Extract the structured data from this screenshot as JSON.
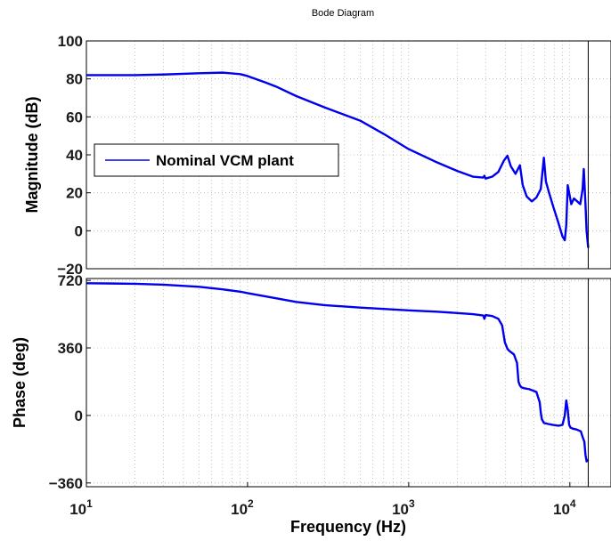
{
  "chart_data": {
    "type": "line",
    "title": "Bode Diagram",
    "xlabel": "Frequency  (Hz)",
    "x_scale": "log",
    "xlim": [
      10,
      18000
    ],
    "x_ticks": [
      {
        "value": 10,
        "base": "10",
        "exp": "1"
      },
      {
        "value": 100,
        "base": "10",
        "exp": "2"
      },
      {
        "value": 1000,
        "base": "10",
        "exp": "3"
      },
      {
        "value": 10000,
        "base": "10",
        "exp": "4"
      }
    ],
    "grid": true,
    "colors": {
      "line": "#0000ee",
      "grid": "#999999",
      "axis": "#000000"
    },
    "legend": {
      "label": "Nominal VCM plant",
      "placement": "middle-left"
    },
    "nyquist_marker_hz": 13000,
    "panels": [
      {
        "id": "magnitude",
        "ylabel": "Magnitude (dB)",
        "ylim": [
          -20,
          100
        ],
        "y_ticks": [
          -20,
          0,
          20,
          40,
          60,
          80,
          100
        ],
        "y_tick_labels": [
          "−20",
          "0",
          "20",
          "40",
          "60",
          "80",
          "100"
        ],
        "series": [
          {
            "name": "Nominal VCM plant",
            "x": [
              10,
              20,
              30,
              50,
              70,
              90,
              100,
              130,
              150,
              200,
              300,
              500,
              700,
              1000,
              1500,
              2000,
              2500,
              2900,
              2950,
              3000,
              3300,
              3600,
              3900,
              4100,
              4300,
              4600,
              4900,
              5100,
              5400,
              5800,
              6200,
              6600,
              6900,
              7100,
              7400,
              7900,
              8500,
              9000,
              9300,
              9500,
              9700,
              9900,
              10200,
              10600,
              11100,
              11600,
              12000,
              12200,
              12500,
              12700,
              13000
            ],
            "y": [
              82,
              82,
              82.3,
              83,
              83.3,
              82.5,
              81.5,
              78,
              76,
              71,
              65,
              58,
              51,
              43,
              36,
              31.5,
              28.5,
              28,
              29,
              27.5,
              28.5,
              31,
              37,
              39.5,
              34,
              30,
              34.5,
              24,
              18,
              15.5,
              17.5,
              22,
              38.5,
              26,
              20.5,
              12.5,
              4,
              -3,
              -5,
              3,
              24,
              20,
              14,
              17,
              15.5,
              14,
              22,
              32.5,
              14,
              0,
              -9
            ]
          }
        ]
      },
      {
        "id": "phase",
        "ylabel": "Phase (deg)",
        "ylim": [
          -380,
          730
        ],
        "y_ticks": [
          -360,
          0,
          360,
          720
        ],
        "y_tick_labels": [
          "−360",
          "0",
          "360",
          "720"
        ],
        "series": [
          {
            "name": "Nominal VCM plant",
            "x": [
              10,
              20,
              30,
              50,
              70,
              90,
              100,
              150,
              200,
              300,
              500,
              700,
              1000,
              1500,
              2000,
              2500,
              2900,
              2950,
              3000,
              3300,
              3600,
              3800,
              3950,
              4100,
              4200,
              4500,
              4700,
              4800,
              4900,
              5000,
              5200,
              5600,
              6200,
              6500,
              6600,
              6700,
              6800,
              6900,
              7300,
              7800,
              8500,
              9000,
              9300,
              9500,
              9700,
              9900,
              10100,
              10400,
              11000,
              11700,
              12000,
              12300,
              12500,
              12700,
              13000
            ],
            "y": [
              705,
              702,
              697,
              686,
              672,
              660,
              652,
              625,
              605,
              588,
              575,
              568,
              560,
              553,
              546,
              540,
              533,
              515,
              535,
              530,
              515,
              480,
              390,
              355,
              345,
              325,
              280,
              180,
              160,
              150,
              145,
              140,
              125,
              70,
              15,
              -20,
              -30,
              -40,
              -45,
              -50,
              -55,
              -50,
              0,
              80,
              30,
              -50,
              -65,
              -70,
              -75,
              -85,
              -115,
              -140,
              -210,
              -245,
              -235
            ]
          }
        ]
      }
    ]
  }
}
